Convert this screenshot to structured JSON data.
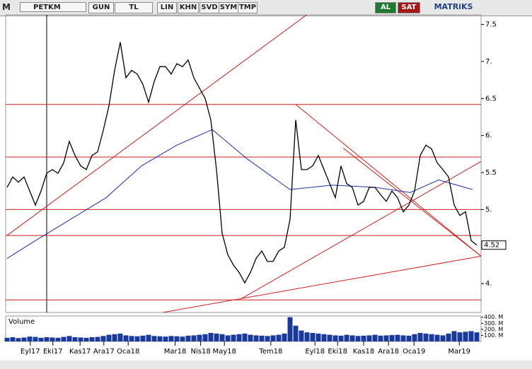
{
  "toolbar": {
    "logo": "M",
    "symbol": "PETKM",
    "buttons": [
      "GUN",
      "TL",
      "LIN",
      "KHN",
      "SVD",
      "SYM",
      "TMP"
    ],
    "buy": "AL",
    "sell": "SAT",
    "brand": "MATRiKS"
  },
  "chart_data": {
    "type": "line",
    "color": "#000000",
    "x": [
      0,
      1,
      2,
      3,
      4,
      5,
      6,
      7,
      8,
      9,
      10,
      11,
      12,
      13,
      14,
      15,
      16,
      17,
      18,
      19,
      20,
      21,
      22,
      23,
      24,
      25,
      26,
      27,
      28,
      29,
      30,
      31,
      32,
      33,
      34,
      35,
      36,
      37,
      38,
      39,
      40,
      41,
      42,
      43,
      44,
      45,
      46,
      47,
      48,
      49,
      50,
      51,
      52,
      53,
      54,
      55,
      56,
      57,
      58,
      59,
      60,
      61,
      62,
      63,
      64,
      65,
      66,
      67,
      68,
      69,
      70,
      71,
      72,
      73,
      74,
      75,
      76,
      77,
      78,
      79,
      80,
      81,
      82,
      83
    ],
    "values": [
      5.3,
      5.44,
      5.37,
      5.44,
      5.25,
      5.06,
      5.25,
      5.49,
      5.54,
      5.49,
      5.63,
      5.92,
      5.73,
      5.59,
      5.54,
      5.73,
      5.78,
      6.07,
      6.4,
      6.88,
      7.26,
      6.78,
      6.88,
      6.83,
      6.69,
      6.45,
      6.73,
      6.93,
      6.93,
      6.83,
      6.97,
      6.93,
      7.02,
      6.78,
      6.64,
      6.5,
      6.21,
      5.54,
      4.68,
      4.39,
      4.25,
      4.15,
      4.01,
      4.15,
      4.34,
      4.44,
      4.3,
      4.3,
      4.44,
      4.49,
      4.87,
      6.21,
      5.54,
      5.54,
      5.59,
      5.73,
      5.54,
      5.35,
      5.16,
      5.59,
      5.35,
      5.3,
      5.06,
      5.11,
      5.3,
      5.3,
      5.2,
      5.11,
      5.25,
      5.16,
      4.97,
      5.06,
      5.25,
      5.73,
      5.87,
      5.82,
      5.63,
      5.54,
      5.44,
      5.06,
      4.92,
      4.97,
      4.58,
      4.52
    ],
    "last_label": "4.52",
    "moving_average": {
      "color": "#1f2fa8",
      "x": [
        0,
        5,
        11.25,
        17.5,
        23.75,
        30,
        36.25,
        42.5,
        50,
        57.5,
        65,
        71.25,
        76.25,
        82.25
      ],
      "values": [
        4.34,
        4.58,
        4.87,
        5.16,
        5.59,
        5.87,
        6.08,
        5.68,
        5.27,
        5.33,
        5.3,
        5.23,
        5.4,
        5.27
      ]
    },
    "hlines": [
      6.42,
      5.71,
      5.0,
      4.65,
      3.78
    ],
    "line_color": "#cc1f1f",
    "trendlines": [
      {
        "x": [
          0,
          53.1
        ],
        "y": [
          4.65,
          7.64
        ]
      },
      {
        "x": [
          51,
          83.75
        ],
        "y": [
          6.42,
          4.37
        ]
      },
      {
        "x": [
          59.4,
          83.75
        ],
        "y": [
          5.83,
          4.37
        ]
      },
      {
        "x": [
          41.25,
          83.75
        ],
        "y": [
          3.79,
          5.65
        ]
      },
      {
        "x": [
          27.5,
          83.75
        ],
        "y": [
          3.61,
          4.37
        ]
      }
    ],
    "xlim": [
      0,
      83.75
    ],
    "ylim": [
      3.61,
      7.63
    ],
    "yticks": [
      {
        "value": 4,
        "label": "4."
      },
      {
        "value": 5,
        "label": "5."
      },
      5.5,
      {
        "value": 6,
        "label": "6."
      },
      6.5,
      {
        "value": 7,
        "label": "7."
      },
      7.5
    ],
    "xticks": [
      {
        "value": 4.1,
        "label": "Eyl17"
      },
      {
        "value": 8.1,
        "label": "Eki17"
      },
      {
        "value": 12.9,
        "label": "Kas17"
      },
      {
        "value": 17.1,
        "label": "Ara17"
      },
      {
        "value": 21.4,
        "label": "Oca18"
      },
      {
        "value": 29.7,
        "label": "Mar18"
      },
      {
        "value": 34.2,
        "label": "Nis18"
      },
      {
        "value": 38.4,
        "label": "May18"
      },
      {
        "value": 46.6,
        "label": "Tem18"
      },
      {
        "value": 54.4,
        "label": "Eyl18"
      },
      {
        "value": 58.4,
        "label": "Eki18"
      },
      {
        "value": 63,
        "label": "Kas18"
      },
      {
        "value": 67.4,
        "label": "Ara18"
      },
      {
        "value": 71.9,
        "label": "Oca19"
      },
      {
        "value": 79.9,
        "label": "Mar19"
      }
    ],
    "volume": {
      "label": "Volume",
      "color": "#1a3a9a",
      "ylim": [
        0,
        420
      ],
      "yticks": [
        {
          "value": 100,
          "label": "100. M"
        },
        {
          "value": 200,
          "label": "200. M"
        },
        {
          "value": 300,
          "label": "300. M"
        },
        {
          "value": 400,
          "label": "400. M"
        }
      ],
      "values": [
        60,
        70,
        55,
        65,
        80,
        75,
        60,
        70,
        65,
        60,
        75,
        90,
        70,
        65,
        60,
        70,
        75,
        90,
        110,
        120,
        130,
        100,
        90,
        85,
        95,
        110,
        90,
        85,
        80,
        90,
        85,
        80,
        95,
        100,
        110,
        120,
        140,
        130,
        120,
        100,
        110,
        120,
        130,
        110,
        100,
        95,
        90,
        100,
        110,
        130,
        400,
        260,
        180,
        150,
        140,
        130,
        120,
        110,
        100,
        95,
        110,
        100,
        90,
        95,
        100,
        110,
        95,
        100,
        105,
        110,
        100,
        95,
        120,
        140,
        130,
        120,
        110,
        100,
        130,
        170,
        150,
        160,
        170,
        150
      ]
    }
  }
}
